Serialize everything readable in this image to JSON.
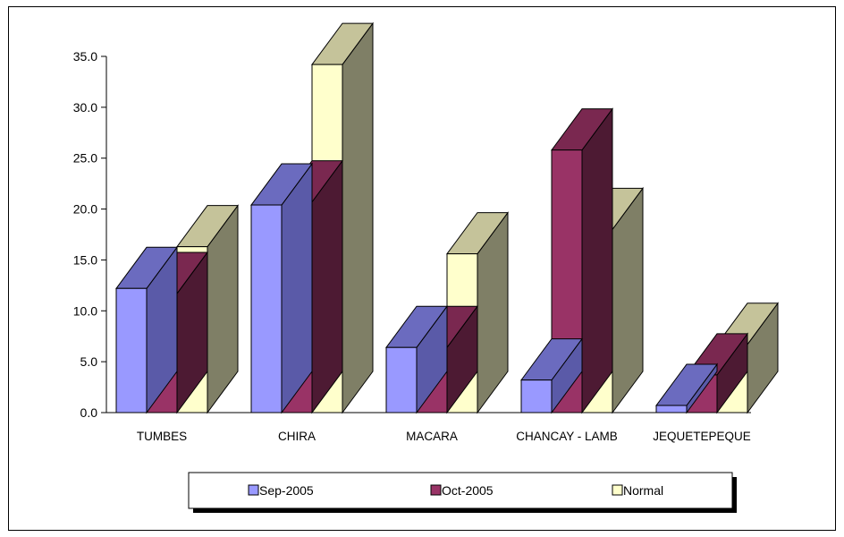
{
  "chart_data": {
    "type": "bar",
    "categories": [
      "TUMBES",
      "CHIRA",
      "MACARA",
      "CHANCAY - LAMB",
      "JEQUETEPEQUE"
    ],
    "series": [
      {
        "name": "Sep-2005",
        "values": [
          12.2,
          20.4,
          6.4,
          3.2,
          0.7
        ]
      },
      {
        "name": "Oct-2005",
        "values": [
          11.7,
          20.7,
          6.4,
          25.8,
          3.7
        ]
      },
      {
        "name": "Normal",
        "values": [
          16.3,
          34.2,
          15.6,
          18.0,
          6.7
        ]
      }
    ],
    "ylim": [
      0,
      35
    ],
    "yticks": [
      "0.0",
      "5.0",
      "10.0",
      "15.0",
      "20.0",
      "25.0",
      "30.0",
      "35.0"
    ],
    "ytick_values": [
      0,
      5,
      10,
      15,
      20,
      25,
      30,
      35
    ],
    "title": "",
    "xlabel": "",
    "ylabel": "",
    "legend_position": "bottom",
    "colors": {
      "Sep-2005": {
        "front": "#9999ff",
        "top": "#6b6bbf",
        "side": "#5a5aa8"
      },
      "Oct-2005": {
        "front": "#993366",
        "top": "#7a2850",
        "side": "#4d1a33"
      },
      "Normal": {
        "front": "#ffffcc",
        "top": "#c5c39a",
        "side": "#7f7f66"
      }
    }
  }
}
